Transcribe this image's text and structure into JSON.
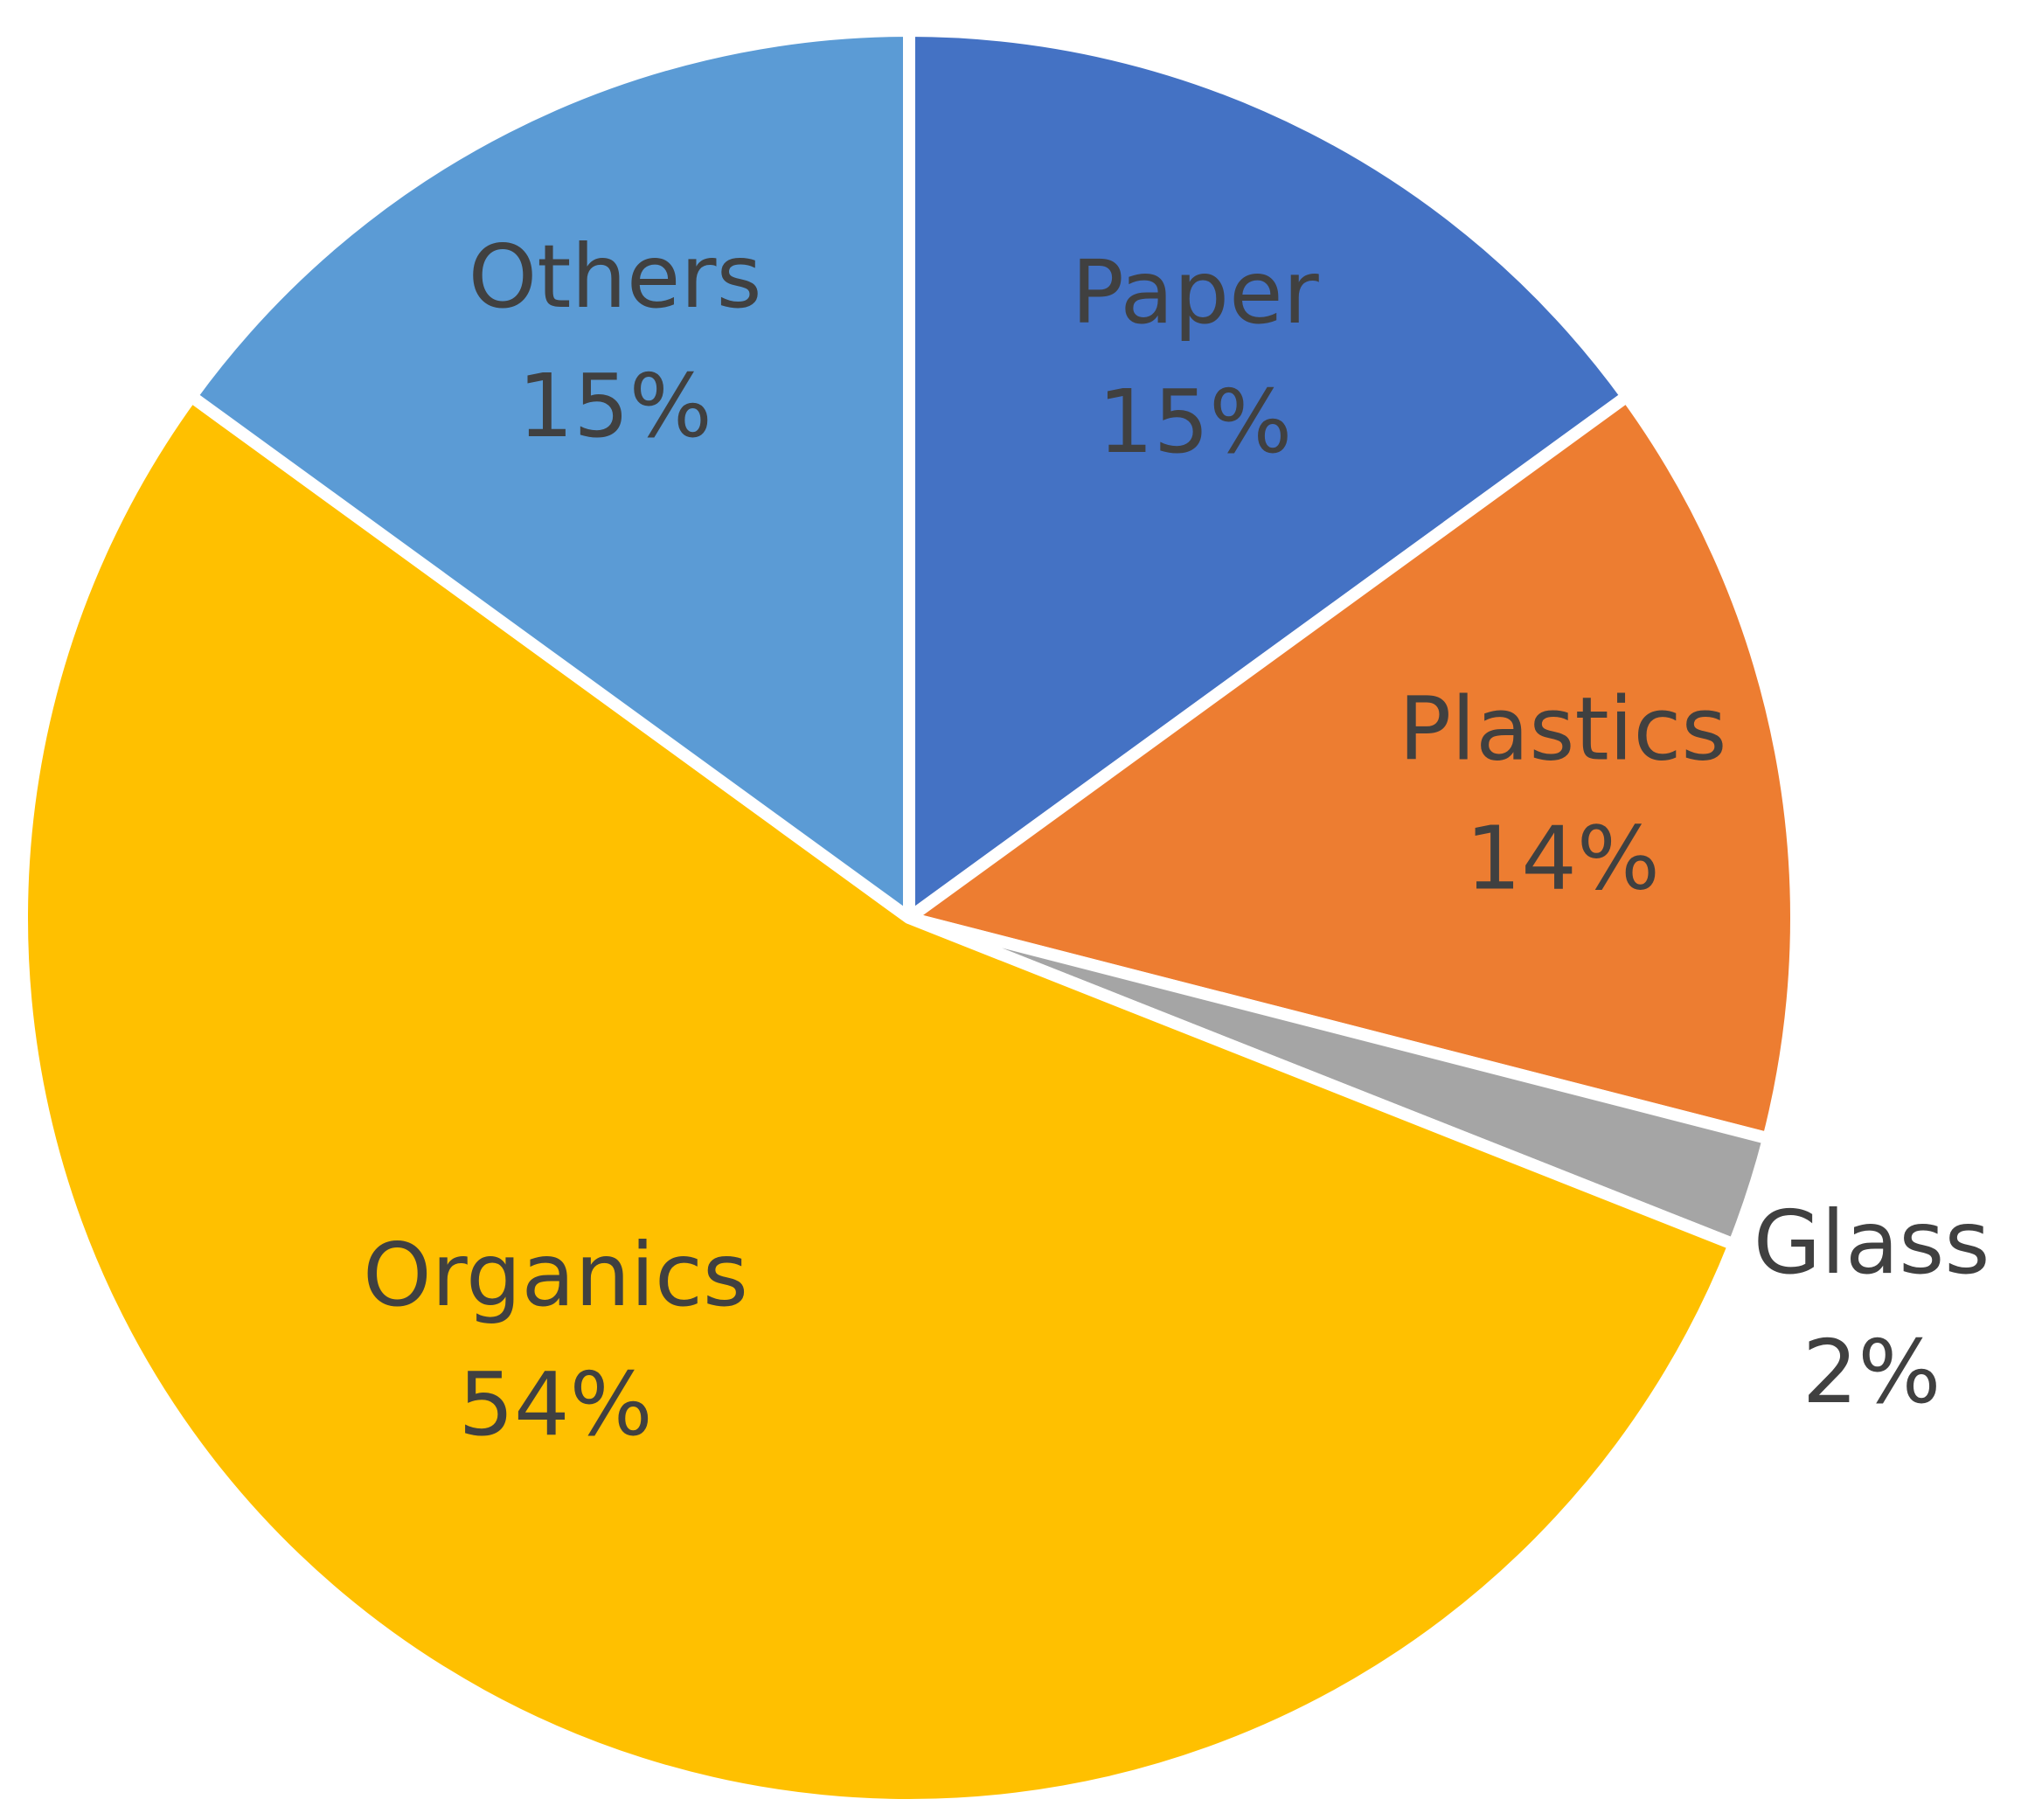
{
  "chart_data": {
    "type": "pie",
    "title": "",
    "start_angle_deg": 0,
    "direction": "clockwise",
    "slices": [
      {
        "label": "Paper",
        "value": 15,
        "value_label": "15%",
        "color": "#4472C4"
      },
      {
        "label": "Plastics",
        "value": 14,
        "value_label": "14%",
        "color": "#ED7D31"
      },
      {
        "label": "Glass",
        "value": 2,
        "value_label": "2%",
        "color": "#A5A5A5"
      },
      {
        "label": "Organics",
        "value": 54,
        "value_label": "54%",
        "color": "#FFC000"
      },
      {
        "label": "Others",
        "value": 15,
        "value_label": "15%",
        "color": "#5B9BD5"
      }
    ],
    "legend": "none",
    "labels_inside": true,
    "separator_color": "#FFFFFF"
  }
}
